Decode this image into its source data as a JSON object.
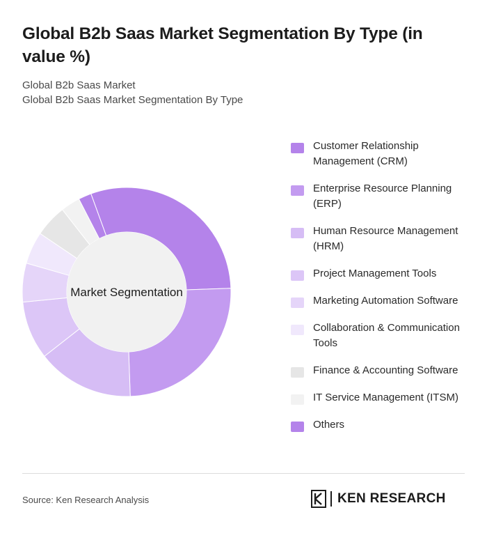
{
  "header": {
    "title": "Global B2b Saas Market Segmentation By Type (in value %)",
    "subtitle_1": "Global B2b Saas Market",
    "subtitle_2": "Global B2b Saas Market Segmentation By Type"
  },
  "chart_data": {
    "type": "pie",
    "variant": "donut",
    "center_label": "Market Segmentation",
    "categories": [
      "Customer Relationship Management (CRM)",
      "Enterprise Resource Planning (ERP)",
      "Human Resource Management (HRM)",
      "Project Management Tools",
      "Marketing Automation Software",
      "Collaboration & Communication Tools",
      "Finance & Accounting Software",
      "IT Service Management (ITSM)",
      "Others"
    ],
    "values": [
      30,
      25,
      15,
      9,
      6,
      5,
      5,
      3,
      2
    ],
    "colors": [
      "#b483ea",
      "#c39bf0",
      "#d6bdf5",
      "#dcc6f7",
      "#e5d5f9",
      "#f0e8fc",
      "#e6e6e6",
      "#f2f2f2",
      "#b483ea"
    ],
    "legend_position": "right"
  },
  "footer": {
    "source": "Source: Ken Research Analysis",
    "brand_name": "KEN RESEARCH"
  }
}
